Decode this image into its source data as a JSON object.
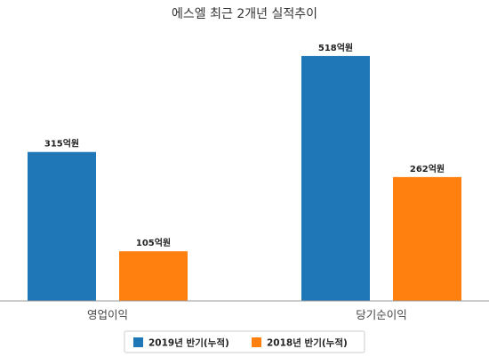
{
  "chart_data": {
    "type": "bar",
    "title": "에스엘 최근 2개년 실적추이",
    "categories": [
      "영업이익",
      "당기순이익"
    ],
    "series": [
      {
        "name": "2019년 반기(누적)",
        "color": "#2077b8",
        "values": [
          315,
          518
        ],
        "labels": [
          "315억원",
          "518억원"
        ]
      },
      {
        "name": "2018년 반기(누적)",
        "color": "#ff800e",
        "values": [
          105,
          262
        ],
        "labels": [
          "105억원",
          "262억원"
        ]
      }
    ],
    "unit": "억원",
    "ylim": [
      0,
      580
    ],
    "grid": false,
    "legend_position": "bottom"
  }
}
